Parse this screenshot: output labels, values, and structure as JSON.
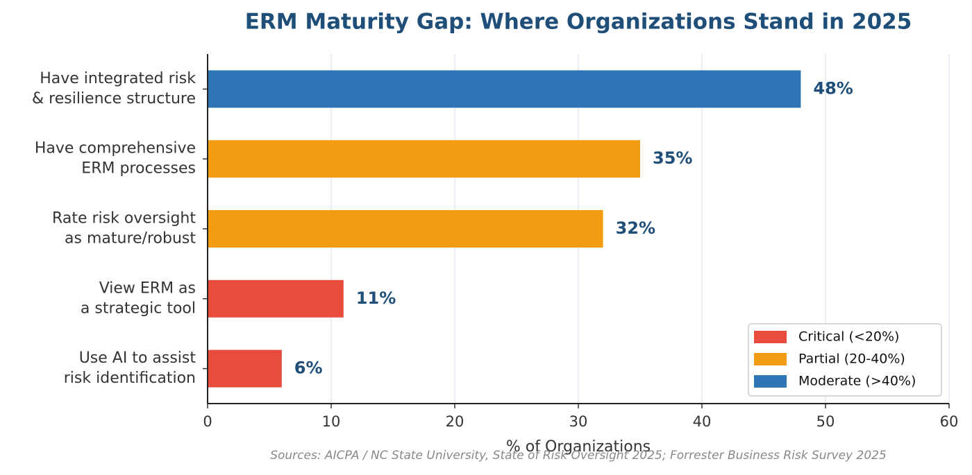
{
  "chart_data": {
    "type": "barh",
    "title": "ERM Maturity Gap: Where Organizations Stand in 2025",
    "xlabel": "% of Organizations",
    "source": "Sources: AICPA / NC State University, State of Risk Oversight 2025; Forrester Business Risk Survey 2025",
    "categories": [
      "Have integrated risk\n& resilience structure",
      "Have comprehensive\nERM processes",
      "Rate risk oversight\nas mature/robust",
      "View ERM as\na strategic tool",
      "Use AI to assist\nrisk identification"
    ],
    "values": [
      48,
      35,
      32,
      11,
      6
    ],
    "value_labels": [
      "48%",
      "35%",
      "32%",
      "11%",
      "6%"
    ],
    "colors": [
      "#2e75b6",
      "#f39c12",
      "#f39c12",
      "#e74c3c",
      "#e74c3c"
    ],
    "xlim": [
      0,
      60
    ],
    "xticks": [
      0,
      10,
      20,
      30,
      40,
      50,
      60
    ],
    "grid": true,
    "legend_position": "lower right",
    "legend": [
      {
        "name": "Critical (<20%)",
        "color": "#e74c3c"
      },
      {
        "name": "Partial (20-40%)",
        "color": "#f39c12"
      },
      {
        "name": "Moderate (>40%)",
        "color": "#2e75b6"
      }
    ]
  }
}
